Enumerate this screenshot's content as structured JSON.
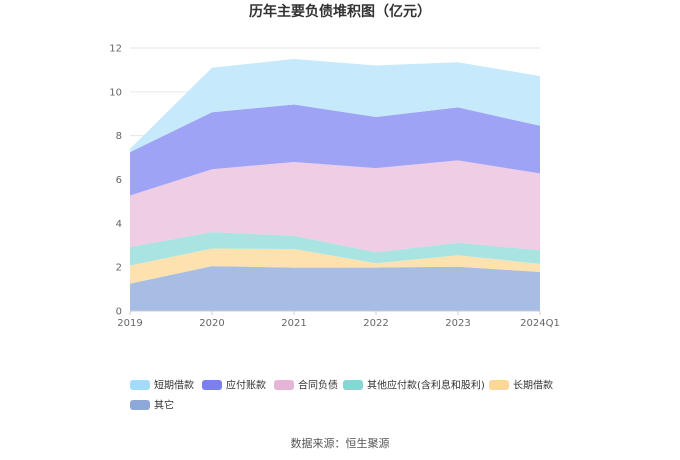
{
  "chart_data": {
    "type": "area",
    "stacked": true,
    "title": "历年主要负债堆积图（亿元）",
    "x": [
      "2019",
      "2020",
      "2021",
      "2022",
      "2023",
      "2024Q1"
    ],
    "ylim": [
      0,
      12
    ],
    "yticks": [
      0,
      2,
      4,
      6,
      8,
      10,
      12
    ],
    "grid": true,
    "legend_position": "bottom",
    "series": [
      {
        "name": "其它",
        "color": "#a8bde3",
        "values": [
          1.25,
          2.05,
          1.98,
          1.98,
          2.02,
          1.78
        ]
      },
      {
        "name": "长期借款",
        "color": "#fde2b0",
        "values": [
          0.82,
          0.8,
          0.85,
          0.2,
          0.52,
          0.37
        ]
      },
      {
        "name": "其他应付款(含利息和股利)",
        "color": "#a9e4e2",
        "values": [
          0.85,
          0.75,
          0.6,
          0.5,
          0.57,
          0.63
        ]
      },
      {
        "name": "合同负债",
        "color": "#efcde4",
        "values": [
          2.35,
          2.87,
          3.37,
          3.84,
          3.76,
          3.5
        ]
      },
      {
        "name": "应付账款",
        "color": "#9ea3f6",
        "values": [
          1.98,
          2.6,
          2.62,
          2.33,
          2.42,
          2.17
        ]
      },
      {
        "name": "短期借款",
        "color": "#c6e9fc",
        "values": [
          0.15,
          2.03,
          2.08,
          2.35,
          2.06,
          2.27
        ]
      }
    ],
    "legend_order": [
      "短期借款",
      "应付账款",
      "合同负债",
      "其他应付款(含利息和股利)",
      "长期借款",
      "其它"
    ],
    "legend_marker_colors": {
      "短期借款": "#a3dcfa",
      "应付账款": "#7b7ff0",
      "合同负债": "#e6b4d6",
      "其他应付款(含利息和股利)": "#86d6d4",
      "长期借款": "#fcd79a",
      "其它": "#8ea8d8"
    }
  },
  "source_text": "数据来源：恒生聚源"
}
